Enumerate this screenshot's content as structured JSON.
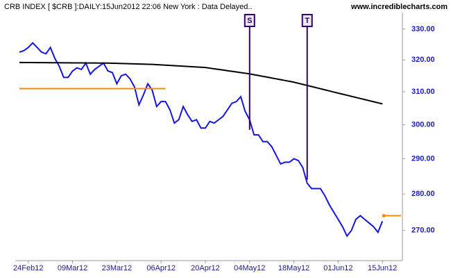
{
  "chart_data": {
    "type": "line",
    "title": "CRB INDEX [ $CRB ]:DAILY:15Jun2012 22:06 New York : Data Delayed..",
    "source": "www.incrediblecharts.com",
    "log_scale": true,
    "ylim": [
      262,
      335.5
    ],
    "yticks": [
      {
        "value": 270,
        "label": "270.00"
      },
      {
        "value": 280,
        "label": "280.00"
      },
      {
        "value": 290,
        "label": "290.00"
      },
      {
        "value": 300,
        "label": "300.00"
      },
      {
        "value": 310,
        "label": "310.00"
      },
      {
        "value": 320,
        "label": "320.00"
      },
      {
        "value": 330,
        "label": "330.00"
      }
    ],
    "categories": [
      null,
      null,
      "24Feb12",
      null,
      null,
      null,
      null,
      null,
      null,
      null,
      null,
      null,
      "09Mar12",
      null,
      null,
      null,
      null,
      null,
      null,
      null,
      null,
      null,
      "23Mar12",
      null,
      null,
      null,
      null,
      null,
      null,
      null,
      null,
      null,
      "06Apr12",
      null,
      null,
      null,
      null,
      null,
      null,
      null,
      null,
      null,
      "20Apr12",
      null,
      null,
      null,
      null,
      null,
      null,
      null,
      null,
      null,
      "04May12",
      null,
      null,
      null,
      null,
      null,
      null,
      null,
      null,
      null,
      "18May12",
      null,
      null,
      null,
      null,
      null,
      null,
      null,
      null,
      null,
      "01Jun12",
      null,
      null,
      null,
      null,
      null,
      null,
      null,
      null,
      null,
      "15Jun12"
    ],
    "series": [
      {
        "color": "#1414e6",
        "values": [
          322.5,
          323,
          324,
          325.5,
          324,
          322.5,
          322,
          324,
          320.5,
          318,
          314.5,
          314.5,
          316.5,
          317.5,
          317,
          319,
          315.5,
          317,
          318,
          319,
          316.5,
          316,
          312.5,
          315,
          315.5,
          314,
          311.5,
          306,
          309,
          312.5,
          310.5,
          305.5,
          307,
          307,
          304.5,
          300.5,
          301.5,
          305.5,
          303,
          301,
          301.5,
          299,
          299,
          301,
          300.5,
          301.5,
          302.5,
          304.5,
          306.5,
          307,
          308.5,
          304,
          301.5,
          297,
          297,
          295,
          295,
          293.5,
          291,
          288.5,
          289,
          289,
          290,
          289.5,
          287.5,
          283,
          281.5,
          281.5,
          281.5,
          279.5,
          277,
          275,
          273,
          271,
          268.5,
          270,
          273,
          274,
          273,
          272,
          271,
          269.5,
          272.5
        ]
      },
      {
        "color": "#000000",
        "values": [
          319.2,
          319.19,
          319.18,
          319.17,
          319.16,
          319.15,
          319.14,
          319.13,
          319.12,
          319.11,
          319.1,
          319.09,
          319.08,
          319.07,
          319.06,
          319.05,
          319.04,
          319.03,
          319.02,
          319.01,
          319.0,
          318.96,
          318.92,
          318.88,
          318.84,
          318.8,
          318.76,
          318.72,
          318.68,
          318.64,
          318.6,
          318.52,
          318.43,
          318.35,
          318.27,
          318.18,
          318.1,
          318.02,
          317.93,
          317.85,
          317.77,
          317.68,
          317.6,
          317.4,
          317.2,
          317.0,
          316.8,
          316.6,
          316.4,
          316.2,
          316.0,
          315.8,
          315.6,
          315.34,
          315.08,
          314.82,
          314.56,
          314.3,
          314.04,
          313.78,
          313.52,
          313.26,
          313.0,
          312.66,
          312.32,
          311.98,
          311.64,
          311.3,
          310.96,
          310.62,
          310.28,
          309.94,
          309.6,
          309.27,
          308.94,
          308.61,
          308.28,
          307.95,
          307.62,
          307.29,
          306.96,
          306.63,
          306.3
        ]
      },
      {
        "color": "#ff8800",
        "values": [
          311,
          311,
          311,
          311,
          311,
          311,
          311,
          311,
          311,
          311,
          311,
          311,
          311,
          311,
          311,
          311,
          311,
          311,
          311,
          311,
          311,
          311,
          311,
          311,
          311,
          311,
          311,
          311,
          311,
          311,
          311,
          311,
          311,
          311,
          null,
          null,
          null,
          null,
          null,
          null,
          null,
          null,
          null,
          null,
          null,
          null,
          null,
          null,
          null,
          null,
          null,
          null,
          null,
          null,
          null,
          null,
          null,
          null,
          null,
          null,
          null,
          null,
          null,
          null,
          null,
          null,
          null,
          null,
          null,
          null,
          null,
          null,
          null,
          null,
          null,
          null,
          null,
          null,
          null,
          null,
          null,
          null,
          null
        ]
      }
    ],
    "last_marker": {
      "value": 274,
      "color": "#ff8800"
    },
    "annotations": [
      {
        "text": "S",
        "x_index": 52,
        "value": 298.5
      },
      {
        "text": "T",
        "x_index": 65,
        "value": 284
      }
    ]
  }
}
